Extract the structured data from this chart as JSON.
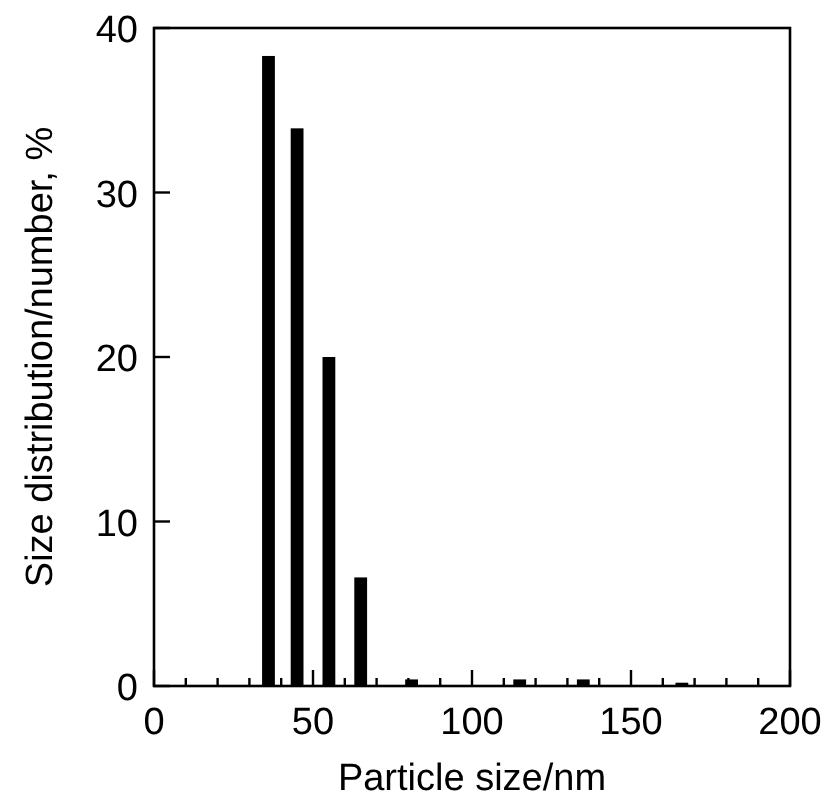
{
  "chart_data": {
    "type": "bar",
    "xlabel": "Particle size/nm",
    "ylabel": "Size distribution/number, %",
    "x": [
      36,
      45,
      55,
      65,
      81,
      115,
      135,
      166
    ],
    "values": [
      38.3,
      33.9,
      20,
      6.6,
      0.4,
      0.4,
      0.4,
      0.2
    ],
    "color": "#000000",
    "xlim": [
      0,
      200
    ],
    "xticks": [
      0,
      {
        "value": 10,
        "label": null
      },
      {
        "value": 20,
        "label": null
      },
      {
        "value": 30,
        "label": null
      },
      {
        "value": 40,
        "label": null
      },
      50,
      {
        "value": 60,
        "label": null
      },
      {
        "value": 70,
        "label": null
      },
      {
        "value": 80,
        "label": null
      },
      {
        "value": 90,
        "label": null
      },
      100,
      {
        "value": 110,
        "label": null
      },
      {
        "value": 120,
        "label": null
      },
      {
        "value": 130,
        "label": null
      },
      {
        "value": 140,
        "label": null
      },
      150,
      {
        "value": 160,
        "label": null
      },
      {
        "value": 170,
        "label": null
      },
      {
        "value": 180,
        "label": null
      },
      {
        "value": 190,
        "label": null
      },
      200
    ],
    "ylim": [
      0,
      40
    ],
    "yticks": [
      0,
      10,
      20,
      30,
      40
    ],
    "grid": false
  }
}
